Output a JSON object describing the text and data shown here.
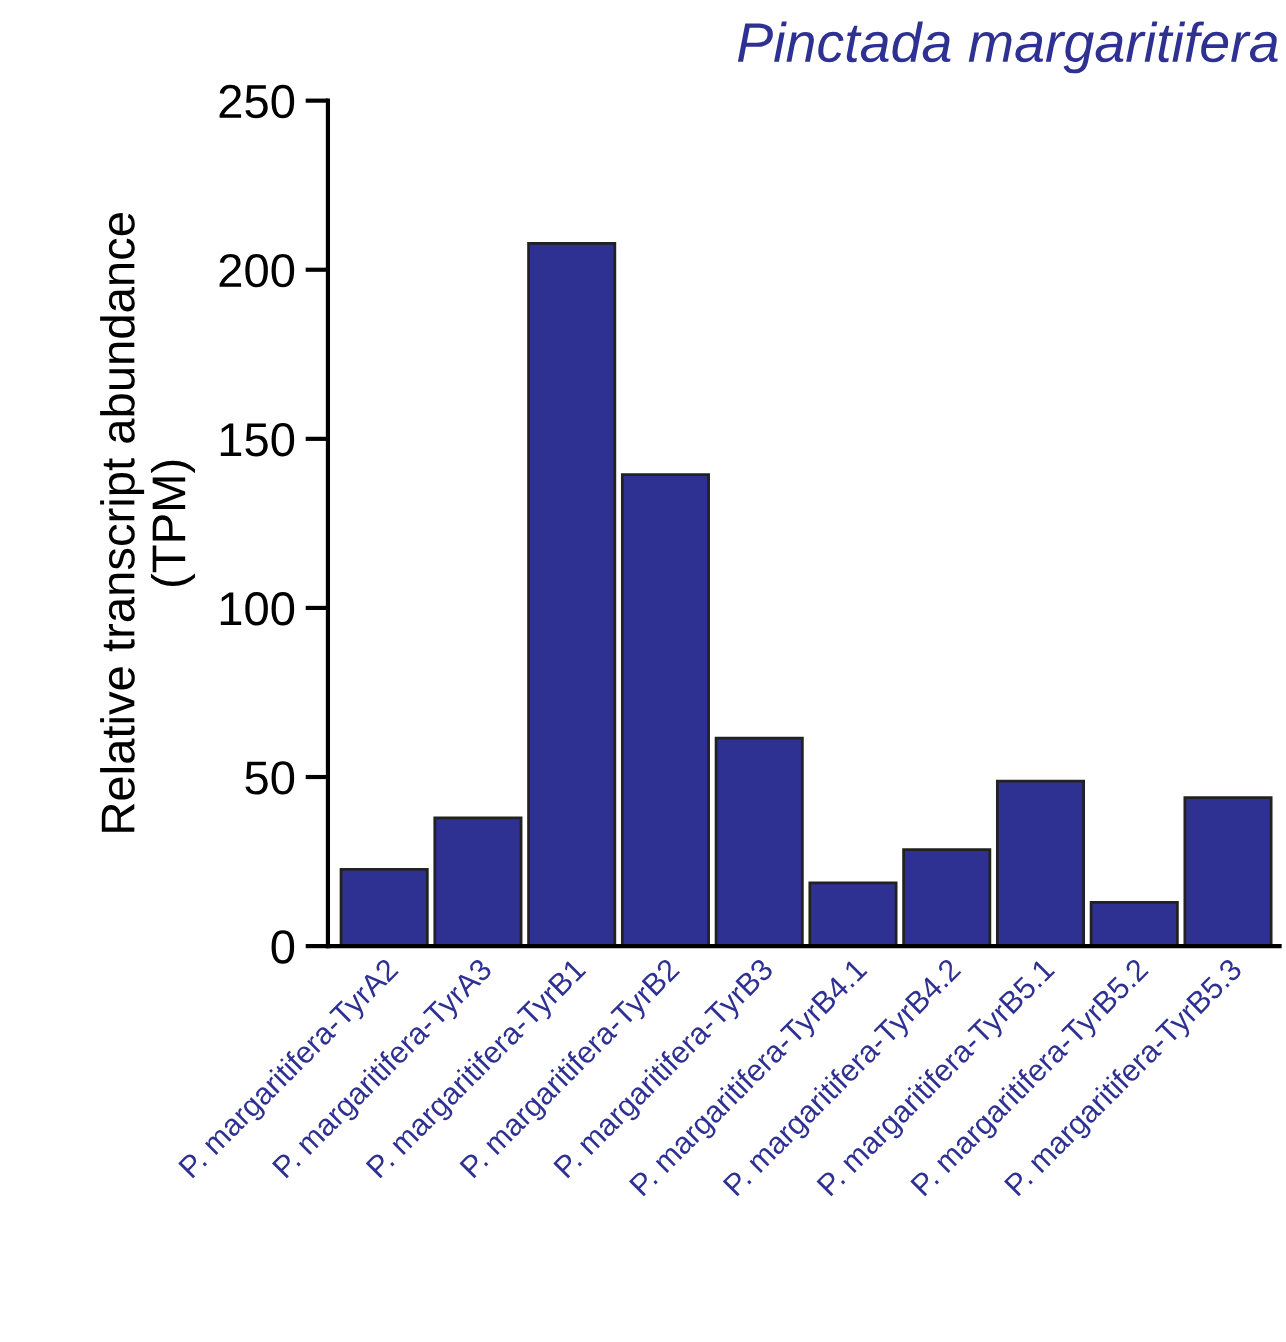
{
  "chart_data": {
    "type": "bar",
    "title": "Pinctada margaritifera",
    "ylabel": "Relative transcript abundance\n(TPM)",
    "categories": [
      "P. margaritifera-TyrA2",
      "P. margaritifera-TyrA3",
      "P. margaritifera-TyrB1",
      "P. margaritifera-TyrB2",
      "P. margaritifera-TyrB3",
      "P. margaritifera-TyrB4.1",
      "P. margaritifera-TyrB4.2",
      "P. margaritifera-TyrB5.1",
      "P. margaritifera-TyrB5.2",
      "P. margaritifera-TyrB5.3"
    ],
    "values": [
      22.7,
      37.9,
      207.8,
      139.4,
      61.5,
      18.7,
      28.5,
      48.8,
      12.9,
      43.9
    ],
    "color": "#2e3192",
    "ylim": [
      0,
      250
    ],
    "yticks": [
      0,
      50,
      100,
      150,
      200,
      250
    ],
    "grid": false
  }
}
